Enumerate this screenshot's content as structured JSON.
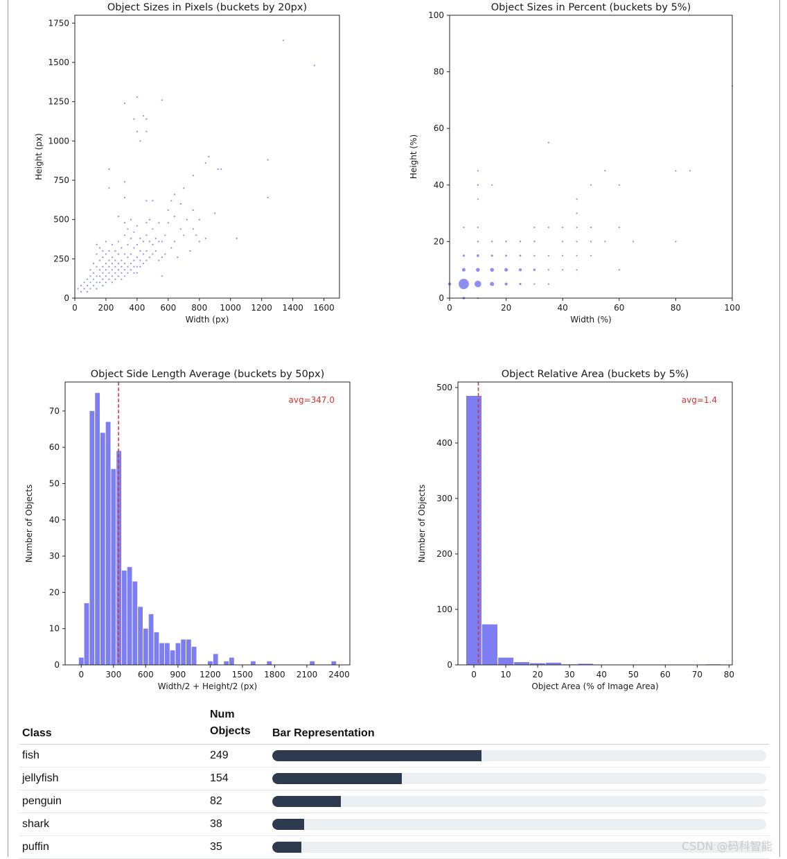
{
  "chart_data": [
    {
      "type": "scatter",
      "title": "Object Sizes in Pixels (buckets by 20px)",
      "xlabel": "Width (px)",
      "ylabel": "Height (px)",
      "xlim": [
        0,
        1700
      ],
      "ylim": [
        0,
        1800
      ],
      "xticks": [
        0,
        200,
        400,
        600,
        800,
        1000,
        1200,
        1400,
        1600
      ],
      "yticks": [
        0,
        250,
        500,
        750,
        1000,
        1250,
        1500,
        1750
      ],
      "points": [
        [
          20,
          60
        ],
        [
          40,
          40
        ],
        [
          40,
          80
        ],
        [
          60,
          60
        ],
        [
          60,
          100
        ],
        [
          80,
          40
        ],
        [
          80,
          80
        ],
        [
          80,
          120
        ],
        [
          100,
          60
        ],
        [
          100,
          100
        ],
        [
          100,
          140
        ],
        [
          100,
          180
        ],
        [
          120,
          80
        ],
        [
          120,
          120
        ],
        [
          120,
          160
        ],
        [
          120,
          220
        ],
        [
          140,
          60
        ],
        [
          140,
          100
        ],
        [
          140,
          140
        ],
        [
          140,
          200
        ],
        [
          140,
          280
        ],
        [
          140,
          340
        ],
        [
          160,
          100
        ],
        [
          160,
          140
        ],
        [
          160,
          180
        ],
        [
          160,
          240
        ],
        [
          160,
          320
        ],
        [
          180,
          80
        ],
        [
          180,
          120
        ],
        [
          180,
          160
        ],
        [
          180,
          200
        ],
        [
          180,
          260
        ],
        [
          180,
          300
        ],
        [
          200,
          100
        ],
        [
          200,
          140
        ],
        [
          200,
          180
        ],
        [
          200,
          220
        ],
        [
          200,
          280
        ],
        [
          200,
          360
        ],
        [
          220,
          120
        ],
        [
          220,
          160
        ],
        [
          220,
          200
        ],
        [
          220,
          240
        ],
        [
          220,
          300
        ],
        [
          240,
          100
        ],
        [
          240,
          140
        ],
        [
          240,
          180
        ],
        [
          240,
          220
        ],
        [
          240,
          260
        ],
        [
          240,
          340
        ],
        [
          260,
          120
        ],
        [
          260,
          160
        ],
        [
          260,
          200
        ],
        [
          260,
          240
        ],
        [
          260,
          300
        ],
        [
          280,
          140
        ],
        [
          280,
          180
        ],
        [
          280,
          220
        ],
        [
          280,
          280
        ],
        [
          280,
          360
        ],
        [
          280,
          520
        ],
        [
          300,
          120
        ],
        [
          300,
          160
        ],
        [
          300,
          200
        ],
        [
          300,
          240
        ],
        [
          300,
          320
        ],
        [
          320,
          140
        ],
        [
          320,
          180
        ],
        [
          320,
          220
        ],
        [
          320,
          280
        ],
        [
          320,
          400
        ],
        [
          320,
          480
        ],
        [
          340,
          160
        ],
        [
          340,
          200
        ],
        [
          340,
          260
        ],
        [
          340,
          340
        ],
        [
          340,
          440
        ],
        [
          360,
          180
        ],
        [
          360,
          220
        ],
        [
          360,
          280
        ],
        [
          360,
          380
        ],
        [
          360,
          500
        ],
        [
          380,
          160
        ],
        [
          380,
          200
        ],
        [
          380,
          240
        ],
        [
          380,
          320
        ],
        [
          380,
          420
        ],
        [
          400,
          160
        ],
        [
          400,
          200
        ],
        [
          400,
          260
        ],
        [
          400,
          340
        ],
        [
          400,
          460
        ],
        [
          420,
          200
        ],
        [
          420,
          240
        ],
        [
          420,
          300
        ],
        [
          420,
          380
        ],
        [
          440,
          220
        ],
        [
          440,
          280
        ],
        [
          440,
          360
        ],
        [
          460,
          240
        ],
        [
          460,
          300
        ],
        [
          460,
          400
        ],
        [
          460,
          480
        ],
        [
          480,
          260
        ],
        [
          480,
          360
        ],
        [
          480,
          500
        ],
        [
          500,
          280
        ],
        [
          500,
          340
        ],
        [
          500,
          440
        ],
        [
          520,
          300
        ],
        [
          520,
          380
        ],
        [
          540,
          240
        ],
        [
          540,
          360
        ],
        [
          540,
          480
        ],
        [
          560,
          140
        ],
        [
          560,
          260
        ],
        [
          560,
          360
        ],
        [
          580,
          280
        ],
        [
          580,
          400
        ],
        [
          600,
          480
        ],
        [
          620,
          320
        ],
        [
          640,
          360
        ],
        [
          640,
          520
        ],
        [
          660,
          260
        ],
        [
          680,
          440
        ],
        [
          700,
          400
        ],
        [
          720,
          500
        ],
        [
          740,
          300
        ],
        [
          760,
          440
        ],
        [
          780,
          400
        ],
        [
          800,
          360
        ],
        [
          840,
          380
        ],
        [
          900,
          540
        ],
        [
          1040,
          380
        ],
        [
          220,
          820
        ],
        [
          220,
          700
        ],
        [
          320,
          1240
        ],
        [
          320,
          740
        ],
        [
          320,
          640
        ],
        [
          380,
          1140
        ],
        [
          400,
          1280
        ],
        [
          400,
          1060
        ],
        [
          420,
          1000
        ],
        [
          440,
          1160
        ],
        [
          460,
          1140
        ],
        [
          460,
          1060
        ],
        [
          460,
          620
        ],
        [
          500,
          620
        ],
        [
          560,
          1260
        ],
        [
          600,
          560
        ],
        [
          620,
          620
        ],
        [
          640,
          660
        ],
        [
          680,
          600
        ],
        [
          700,
          700
        ],
        [
          760,
          560
        ],
        [
          760,
          780
        ],
        [
          800,
          500
        ],
        [
          840,
          860
        ],
        [
          860,
          900
        ],
        [
          920,
          820
        ],
        [
          940,
          820
        ],
        [
          1240,
          880
        ],
        [
          1240,
          640
        ],
        [
          1340,
          1640
        ],
        [
          1540,
          1480
        ]
      ]
    },
    {
      "type": "scatter",
      "title": "Object Sizes in Percent  (buckets by 5%)",
      "xlabel": "Width (%)",
      "ylabel": "Height (%)",
      "xlim": [
        0,
        100
      ],
      "ylim": [
        0,
        100
      ],
      "xticks": [
        0,
        20,
        40,
        60,
        80,
        100
      ],
      "yticks": [
        0,
        20,
        40,
        60,
        80,
        100
      ],
      "points": [
        [
          0,
          5,
          20
        ],
        [
          5,
          5,
          220
        ],
        [
          10,
          5,
          90
        ],
        [
          15,
          5,
          35
        ],
        [
          20,
          5,
          18
        ],
        [
          25,
          5,
          10
        ],
        [
          30,
          5,
          4
        ],
        [
          35,
          5,
          3
        ],
        [
          5,
          0,
          14
        ],
        [
          10,
          0,
          6
        ],
        [
          5,
          10,
          26
        ],
        [
          10,
          10,
          30
        ],
        [
          15,
          10,
          30
        ],
        [
          20,
          10,
          26
        ],
        [
          25,
          10,
          18
        ],
        [
          30,
          10,
          12
        ],
        [
          35,
          10,
          4
        ],
        [
          40,
          10,
          4
        ],
        [
          45,
          10,
          4
        ],
        [
          60,
          10,
          2
        ],
        [
          5,
          15,
          10
        ],
        [
          10,
          15,
          14
        ],
        [
          15,
          15,
          10
        ],
        [
          20,
          15,
          8
        ],
        [
          25,
          15,
          8
        ],
        [
          30,
          15,
          6
        ],
        [
          35,
          15,
          4
        ],
        [
          40,
          15,
          4
        ],
        [
          45,
          15,
          4
        ],
        [
          50,
          15,
          4
        ],
        [
          10,
          20,
          6
        ],
        [
          15,
          20,
          6
        ],
        [
          20,
          20,
          6
        ],
        [
          25,
          20,
          6
        ],
        [
          30,
          20,
          6
        ],
        [
          40,
          20,
          4
        ],
        [
          45,
          20,
          4
        ],
        [
          50,
          20,
          5
        ],
        [
          55,
          20,
          3
        ],
        [
          65,
          20,
          3
        ],
        [
          80,
          20,
          3
        ],
        [
          5,
          25,
          3
        ],
        [
          10,
          25,
          3
        ],
        [
          30,
          25,
          3
        ],
        [
          35,
          25,
          3
        ],
        [
          40,
          25,
          3
        ],
        [
          45,
          25,
          3
        ],
        [
          50,
          25,
          3
        ],
        [
          60,
          25,
          3
        ],
        [
          45,
          30,
          3
        ],
        [
          10,
          35,
          4
        ],
        [
          45,
          35,
          3
        ],
        [
          10,
          40,
          6
        ],
        [
          15,
          40,
          3
        ],
        [
          50,
          40,
          3
        ],
        [
          60,
          40,
          4
        ],
        [
          10,
          45,
          3
        ],
        [
          55,
          45,
          3
        ],
        [
          80,
          45,
          3
        ],
        [
          85,
          45,
          3
        ],
        [
          35,
          55,
          3
        ],
        [
          100,
          75,
          3
        ]
      ]
    },
    {
      "type": "bar",
      "title": "Object Side Length Average (buckets by 50px)",
      "xlabel": "Width/2 + Height/2 (px)",
      "ylabel": "Number of Objects",
      "bin_width": 50,
      "xlim": [
        -150,
        2500
      ],
      "ylim": [
        0,
        78
      ],
      "xticks": [
        0,
        300,
        600,
        900,
        1200,
        1500,
        1800,
        2100,
        2400
      ],
      "yticks": [
        0,
        10,
        20,
        30,
        40,
        50,
        60,
        70
      ],
      "values": [
        2,
        17,
        70,
        75,
        64,
        67,
        54,
        59,
        26,
        27,
        23,
        16,
        10,
        14,
        9,
        6,
        6,
        4,
        6,
        7,
        7,
        5,
        0,
        0,
        1,
        3,
        0,
        1,
        2,
        0,
        0,
        0,
        1,
        0,
        0,
        1,
        0,
        0,
        0,
        0,
        0,
        0,
        0,
        1,
        0,
        0,
        0,
        1
      ],
      "avg": 347.0,
      "avg_label": "avg=347.0"
    },
    {
      "type": "bar",
      "title": "Object Relative Area (buckets by 5%)",
      "xlabel": "Object Area (% of Image Area)",
      "ylabel": "Number of Objects",
      "bin_width": 5,
      "xlim": [
        -5,
        81
      ],
      "ylim": [
        0,
        510
      ],
      "xticks": [
        0,
        10,
        20,
        30,
        40,
        50,
        60,
        70,
        80
      ],
      "yticks": [
        0,
        100,
        200,
        300,
        400,
        500
      ],
      "values": [
        485,
        73,
        13,
        5,
        3,
        4,
        1,
        2,
        0,
        0,
        0,
        0,
        0,
        0,
        0,
        1
      ],
      "avg": 1.4,
      "avg_label": "avg=1.4"
    }
  ],
  "table": {
    "headers": {
      "class": "Class",
      "num_line1": "Num",
      "num_line2": "Objects",
      "bar": "Bar Representation"
    },
    "max_value": 588,
    "rows": [
      {
        "class": "fish",
        "count": "249",
        "value": 249
      },
      {
        "class": "jellyfish",
        "count": "154",
        "value": 154
      },
      {
        "class": "penguin",
        "count": "82",
        "value": 82
      },
      {
        "class": "shark",
        "count": "38",
        "value": 38
      },
      {
        "class": "puffin",
        "count": "35",
        "value": 35
      }
    ]
  },
  "watermark": "CSDN @码科智能",
  "colors": {
    "marker": "#6a6aee",
    "bar": "#7e7ef3",
    "avg": "#e0302a",
    "table_fill": "#2e3b4e",
    "table_track": "#eceff1"
  }
}
